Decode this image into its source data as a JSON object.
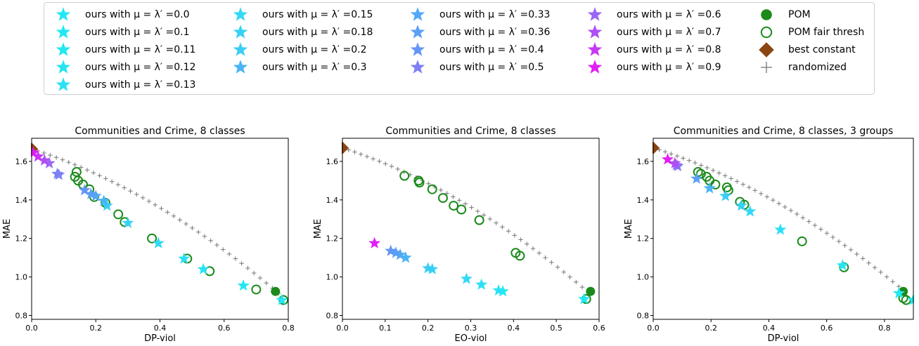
{
  "legend": {
    "items": [
      {
        "label": "ours with μ = λ′ =0.0",
        "marker": "star",
        "color": "#22e8f2"
      },
      {
        "label": "ours with μ = λ′ =0.1",
        "marker": "star",
        "color": "#22e8f2"
      },
      {
        "label": "ours with μ = λ′ =0.11",
        "marker": "star",
        "color": "#22e8f2"
      },
      {
        "label": "ours with μ = λ′ =0.12",
        "marker": "star",
        "color": "#28e4f3"
      },
      {
        "label": "ours with μ = λ′ =0.13",
        "marker": "star",
        "color": "#2ce0f4"
      },
      {
        "label": "ours with μ = λ′ =0.15",
        "marker": "star",
        "color": "#33d8f5"
      },
      {
        "label": "ours with μ = λ′ =0.18",
        "marker": "star",
        "color": "#36d2f5"
      },
      {
        "label": "ours with μ = λ′ =0.2",
        "marker": "star",
        "color": "#3acdf6"
      },
      {
        "label": "ours with μ = λ′ =0.3",
        "marker": "star",
        "color": "#4ab4f6"
      },
      {
        "label": "ours with μ = λ′ =0.33",
        "marker": "star",
        "color": "#52a8f6"
      },
      {
        "label": "ours with μ = λ′ =0.36",
        "marker": "star",
        "color": "#5aa0f6"
      },
      {
        "label": "ours with μ = λ′ =0.4",
        "marker": "star",
        "color": "#6496f6"
      },
      {
        "label": "ours with μ = λ′ =0.5",
        "marker": "star",
        "color": "#7e80f5"
      },
      {
        "label": "ours with μ = λ′ =0.6",
        "marker": "star",
        "color": "#9a66f5"
      },
      {
        "label": "ours with μ = λ′ =0.7",
        "marker": "star",
        "color": "#b04ef5"
      },
      {
        "label": "ours with μ = λ′ =0.8",
        "marker": "star",
        "color": "#c838f5"
      },
      {
        "label": "ours with μ = λ′ =0.9",
        "marker": "star",
        "color": "#e020f5"
      },
      {
        "label": "POM",
        "marker": "filled-circle",
        "color": "#1a8a1a"
      },
      {
        "label": "POM fair thresh",
        "marker": "open-circle",
        "color": "#1a8a1a"
      },
      {
        "label": "best constant",
        "marker": "diamond",
        "color": "#8b4513"
      },
      {
        "label": "randomized",
        "marker": "plus",
        "color": "#777777"
      }
    ]
  },
  "chart_data": [
    {
      "type": "scatter",
      "title": "Communities and Crime, 8 classes",
      "xlabel": "DP-viol",
      "ylabel": "MAE",
      "xlim": [
        0,
        0.8
      ],
      "ylim": [
        0.78,
        1.72
      ],
      "xticks": [
        "0.0",
        "0.2",
        "0.4",
        "0.6",
        "0.8"
      ],
      "yticks": [
        "0.8",
        "1.0",
        "1.2",
        "1.4",
        "1.6"
      ],
      "ours": [
        [
          0.78,
          0.88,
          "#22e8f2"
        ],
        [
          0.66,
          0.955,
          "#22e8f2"
        ],
        [
          0.535,
          1.04,
          "#28e4f3"
        ],
        [
          0.475,
          1.095,
          "#2ce0f4"
        ],
        [
          0.395,
          1.175,
          "#33d8f5"
        ],
        [
          0.3,
          1.28,
          "#36d2f5"
        ],
        [
          0.235,
          1.37,
          "#3acdf6"
        ],
        [
          0.225,
          1.395,
          "#4ab4f6"
        ],
        [
          0.2,
          1.42,
          "#52a8f6"
        ],
        [
          0.185,
          1.43,
          "#5aa0f6"
        ],
        [
          0.165,
          1.45,
          "#6496f6"
        ],
        [
          0.085,
          1.53,
          "#7e80f5"
        ],
        [
          0.08,
          1.535,
          "#7e80f5"
        ],
        [
          0.055,
          1.59,
          "#9a66f5"
        ],
        [
          0.04,
          1.605,
          "#b04ef5"
        ],
        [
          0.02,
          1.625,
          "#c838f5"
        ],
        [
          0.005,
          1.645,
          "#e020f5"
        ]
      ],
      "pom": [
        [
          0.76,
          0.925
        ]
      ],
      "pom_fair": [
        [
          0.785,
          0.88
        ],
        [
          0.7,
          0.935
        ],
        [
          0.555,
          1.03
        ],
        [
          0.485,
          1.095
        ],
        [
          0.375,
          1.2
        ],
        [
          0.29,
          1.285
        ],
        [
          0.27,
          1.325
        ],
        [
          0.23,
          1.385
        ],
        [
          0.195,
          1.415
        ],
        [
          0.18,
          1.455
        ],
        [
          0.16,
          1.48
        ],
        [
          0.145,
          1.5
        ],
        [
          0.135,
          1.52
        ],
        [
          0.14,
          1.545
        ]
      ],
      "best_constant": [
        [
          0.0,
          1.665
        ]
      ],
      "randomized": {
        "x0": 0.0,
        "y0": 1.665,
        "x1": 0.77,
        "y1": 0.915,
        "count": 40
      }
    },
    {
      "type": "scatter",
      "title": "Communities and Crime, 8 classes",
      "xlabel": "EO-viol",
      "ylabel": "MAE",
      "xlim": [
        0,
        0.6
      ],
      "ylim": [
        0.78,
        1.72
      ],
      "xticks": [
        "0.0",
        "0.1",
        "0.2",
        "0.3",
        "0.4",
        "0.5",
        "0.6"
      ],
      "yticks": [
        "0.8",
        "1.0",
        "1.2",
        "1.4",
        "1.6"
      ],
      "ours": [
        [
          0.565,
          0.885,
          "#22e8f2"
        ],
        [
          0.375,
          0.925,
          "#22e8f2"
        ],
        [
          0.365,
          0.93,
          "#28e4f3"
        ],
        [
          0.325,
          0.96,
          "#2ce0f4"
        ],
        [
          0.29,
          0.99,
          "#33d8f5"
        ],
        [
          0.21,
          1.04,
          "#36d2f5"
        ],
        [
          0.2,
          1.045,
          "#3acdf6"
        ],
        [
          0.148,
          1.1,
          "#4ab4f6"
        ],
        [
          0.135,
          1.115,
          "#52a8f6"
        ],
        [
          0.125,
          1.125,
          "#5aa0f6"
        ],
        [
          0.113,
          1.135,
          "#6496f6"
        ],
        [
          0.075,
          1.175,
          "#e020f5"
        ]
      ],
      "pom": [
        [
          0.58,
          0.925
        ]
      ],
      "pom_fair": [
        [
          0.57,
          0.885
        ],
        [
          0.415,
          1.11
        ],
        [
          0.405,
          1.125
        ],
        [
          0.32,
          1.295
        ],
        [
          0.278,
          1.35
        ],
        [
          0.26,
          1.37
        ],
        [
          0.235,
          1.41
        ],
        [
          0.21,
          1.455
        ],
        [
          0.18,
          1.49
        ],
        [
          0.178,
          1.5
        ],
        [
          0.145,
          1.525
        ]
      ],
      "best_constant": [
        [
          0.0,
          1.67
        ]
      ],
      "randomized": {
        "x0": 0.0,
        "y0": 1.67,
        "x1": 0.575,
        "y1": 0.92,
        "count": 40
      }
    },
    {
      "type": "scatter",
      "title": "Communities and Crime, 8 classes, 3 groups",
      "xlabel": "DP-viol",
      "ylabel": "MAE",
      "xlim": [
        0,
        0.9
      ],
      "ylim": [
        0.78,
        1.72
      ],
      "xticks": [
        "0.0",
        "0.2",
        "0.4",
        "0.6",
        "0.8"
      ],
      "yticks": [
        "0.8",
        "1.0",
        "1.2",
        "1.4",
        "1.6"
      ],
      "ours": [
        [
          0.9,
          0.88,
          "#22e8f2"
        ],
        [
          0.85,
          0.915,
          "#22e8f2"
        ],
        [
          0.655,
          1.06,
          "#28e4f3"
        ],
        [
          0.44,
          1.245,
          "#2ce0f4"
        ],
        [
          0.335,
          1.34,
          "#33d8f5"
        ],
        [
          0.305,
          1.37,
          "#36d2f5"
        ],
        [
          0.25,
          1.42,
          "#3acdf6"
        ],
        [
          0.195,
          1.46,
          "#4ab4f6"
        ],
        [
          0.15,
          1.51,
          "#5aa0f6"
        ],
        [
          0.085,
          1.575,
          "#7e80f5"
        ],
        [
          0.08,
          1.58,
          "#9a66f5"
        ],
        [
          0.075,
          1.59,
          "#b04ef5"
        ],
        [
          0.05,
          1.61,
          "#e020f5"
        ]
      ],
      "pom": [
        [
          0.865,
          0.925
        ]
      ],
      "pom_fair": [
        [
          0.875,
          0.88
        ],
        [
          0.865,
          0.89
        ],
        [
          0.66,
          1.05
        ],
        [
          0.515,
          1.185
        ],
        [
          0.315,
          1.375
        ],
        [
          0.3,
          1.39
        ],
        [
          0.26,
          1.45
        ],
        [
          0.255,
          1.465
        ],
        [
          0.215,
          1.48
        ],
        [
          0.195,
          1.5
        ],
        [
          0.185,
          1.52
        ],
        [
          0.165,
          1.535
        ],
        [
          0.155,
          1.545
        ]
      ],
      "best_constant": [
        [
          0.0,
          1.67
        ]
      ],
      "randomized": {
        "x0": 0.0,
        "y0": 1.67,
        "x1": 0.87,
        "y1": 0.925,
        "count": 42
      }
    }
  ]
}
